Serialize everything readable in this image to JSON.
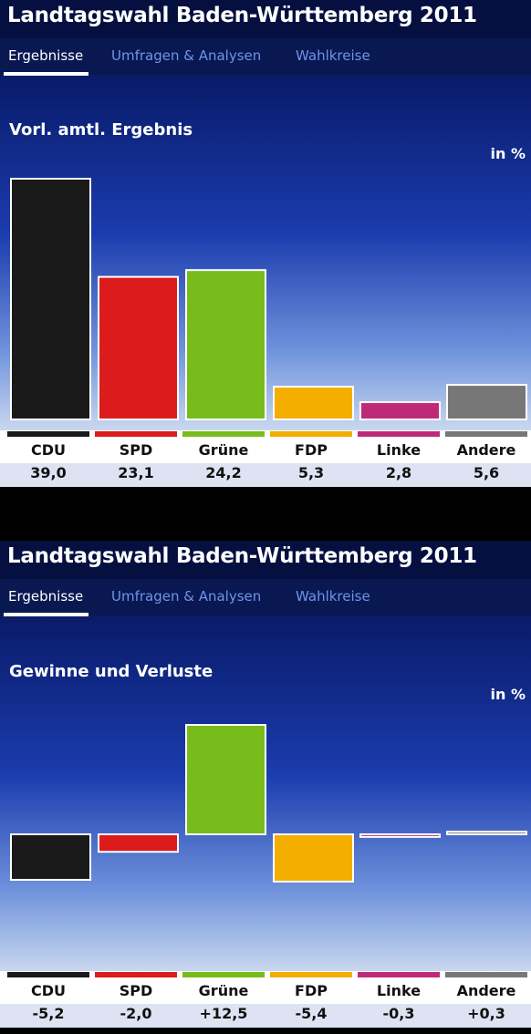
{
  "header": {
    "title": "Landtagswahl Baden-Württemberg 2011",
    "tabs": [
      {
        "label": "Ergebnisse",
        "active": true
      },
      {
        "label": "Umfragen & Analysen",
        "active": false
      },
      {
        "label": "Wahlkreise",
        "active": false
      }
    ]
  },
  "colors": {
    "CDU": "#1a1a1a",
    "SPD": "#dc1c1c",
    "Grüne": "#78bc1b",
    "FDP": "#f3ae00",
    "Linke": "#bf2a78",
    "Andere": "#777777"
  },
  "unit_label": "in %",
  "chart_data": [
    {
      "type": "bar",
      "title": "Vorl. amtl. Ergebnis",
      "categories": [
        "CDU",
        "SPD",
        "Grüne",
        "FDP",
        "Linke",
        "Andere"
      ],
      "values": [
        39.0,
        23.1,
        24.2,
        5.3,
        2.8,
        5.6
      ],
      "value_labels": [
        "39,0",
        "23,1",
        "24,2",
        "5,3",
        "2,8",
        "5,6"
      ],
      "ylim": [
        0,
        40
      ],
      "grid": false
    },
    {
      "type": "bar",
      "title": "Gewinne und Verluste",
      "categories": [
        "CDU",
        "SPD",
        "Grüne",
        "FDP",
        "Linke",
        "Andere"
      ],
      "values": [
        -5.2,
        -2.0,
        12.5,
        -5.4,
        -0.3,
        0.3
      ],
      "value_labels": [
        "-5,2",
        "-2,0",
        "+12,5",
        "-5,4",
        "-0,3",
        "+0,3"
      ],
      "ylim": [
        -6,
        13
      ],
      "grid": false
    }
  ]
}
